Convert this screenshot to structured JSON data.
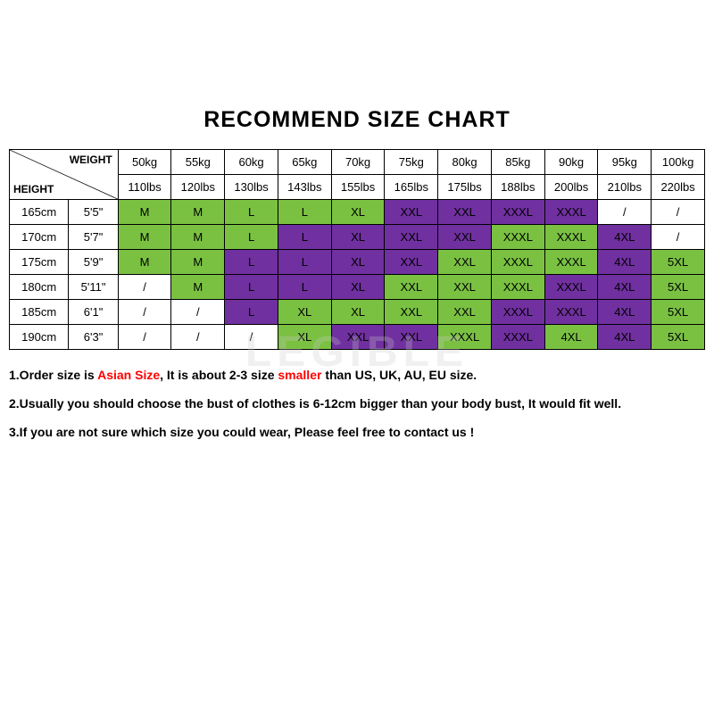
{
  "title": "RECOMMEND SIZE CHART",
  "cornerLabels": {
    "weight": "WEIGHT",
    "height": "HEIGHT"
  },
  "watermark": "LEGIBLE",
  "colors": {
    "green": "#7ac142",
    "purple": "#7030a0",
    "white": "#ffffff",
    "border": "#000000",
    "noteHighlight": "#ff0000"
  },
  "weightHeaders": {
    "kg": [
      "50kg",
      "55kg",
      "60kg",
      "65kg",
      "70kg",
      "75kg",
      "80kg",
      "85kg",
      "90kg",
      "95kg",
      "100kg"
    ],
    "lbs": [
      "110lbs",
      "120lbs",
      "130lbs",
      "143lbs",
      "155lbs",
      "165lbs",
      "175lbs",
      "188lbs",
      "200lbs",
      "210lbs",
      "220lbs"
    ]
  },
  "heightHeaders": [
    {
      "cm": "165cm",
      "ft": "5'5\""
    },
    {
      "cm": "170cm",
      "ft": "5'7\""
    },
    {
      "cm": "175cm",
      "ft": "5'9\""
    },
    {
      "cm": "180cm",
      "ft": "5'11\""
    },
    {
      "cm": "185cm",
      "ft": "6'1\""
    },
    {
      "cm": "190cm",
      "ft": "6'3\""
    }
  ],
  "sizeGrid": [
    [
      [
        "M",
        "g"
      ],
      [
        "M",
        "g"
      ],
      [
        "L",
        "g"
      ],
      [
        "L",
        "g"
      ],
      [
        "XL",
        "g"
      ],
      [
        "XXL",
        "p"
      ],
      [
        "XXL",
        "p"
      ],
      [
        "XXXL",
        "p"
      ],
      [
        "XXXL",
        "p"
      ],
      [
        "/",
        "w"
      ],
      [
        "/",
        "w"
      ]
    ],
    [
      [
        "M",
        "g"
      ],
      [
        "M",
        "g"
      ],
      [
        "L",
        "g"
      ],
      [
        "L",
        "p"
      ],
      [
        "XL",
        "p"
      ],
      [
        "XXL",
        "p"
      ],
      [
        "XXL",
        "p"
      ],
      [
        "XXXL",
        "g"
      ],
      [
        "XXXL",
        "g"
      ],
      [
        "4XL",
        "p"
      ],
      [
        "/",
        "w"
      ]
    ],
    [
      [
        "M",
        "g"
      ],
      [
        "M",
        "g"
      ],
      [
        "L",
        "p"
      ],
      [
        "L",
        "p"
      ],
      [
        "XL",
        "p"
      ],
      [
        "XXL",
        "p"
      ],
      [
        "XXL",
        "g"
      ],
      [
        "XXXL",
        "g"
      ],
      [
        "XXXL",
        "g"
      ],
      [
        "4XL",
        "p"
      ],
      [
        "5XL",
        "g"
      ]
    ],
    [
      [
        "/",
        "w"
      ],
      [
        "M",
        "g"
      ],
      [
        "L",
        "p"
      ],
      [
        "L",
        "p"
      ],
      [
        "XL",
        "p"
      ],
      [
        "XXL",
        "g"
      ],
      [
        "XXL",
        "g"
      ],
      [
        "XXXL",
        "g"
      ],
      [
        "XXXL",
        "p"
      ],
      [
        "4XL",
        "p"
      ],
      [
        "5XL",
        "g"
      ]
    ],
    [
      [
        "/",
        "w"
      ],
      [
        "/",
        "w"
      ],
      [
        "L",
        "p"
      ],
      [
        "XL",
        "g"
      ],
      [
        "XL",
        "g"
      ],
      [
        "XXL",
        "g"
      ],
      [
        "XXL",
        "g"
      ],
      [
        "XXXL",
        "p"
      ],
      [
        "XXXL",
        "p"
      ],
      [
        "4XL",
        "p"
      ],
      [
        "5XL",
        "g"
      ]
    ],
    [
      [
        "/",
        "w"
      ],
      [
        "/",
        "w"
      ],
      [
        "/",
        "w"
      ],
      [
        "XL",
        "g"
      ],
      [
        "XXL",
        "p"
      ],
      [
        "XXL",
        "p"
      ],
      [
        "XXXL",
        "g"
      ],
      [
        "XXXL",
        "p"
      ],
      [
        "4XL",
        "g"
      ],
      [
        "4XL",
        "p"
      ],
      [
        "5XL",
        "g"
      ]
    ]
  ],
  "colorMap": {
    "g": "#7ac142",
    "p": "#7030a0",
    "w": "#ffffff"
  },
  "notes": [
    {
      "prefix": "1.Order size is ",
      "hl1": "Asian Size",
      "mid": ", It is about 2-3 size ",
      "hl2": "smaller",
      "suffix": " than US, UK, AU, EU size."
    },
    {
      "text": "2.Usually you should choose the bust of clothes is 6-12cm bigger than your body bust, It would fit well."
    },
    {
      "text": "3.If you are not sure which size you could wear, Please feel free to contact us !"
    }
  ]
}
